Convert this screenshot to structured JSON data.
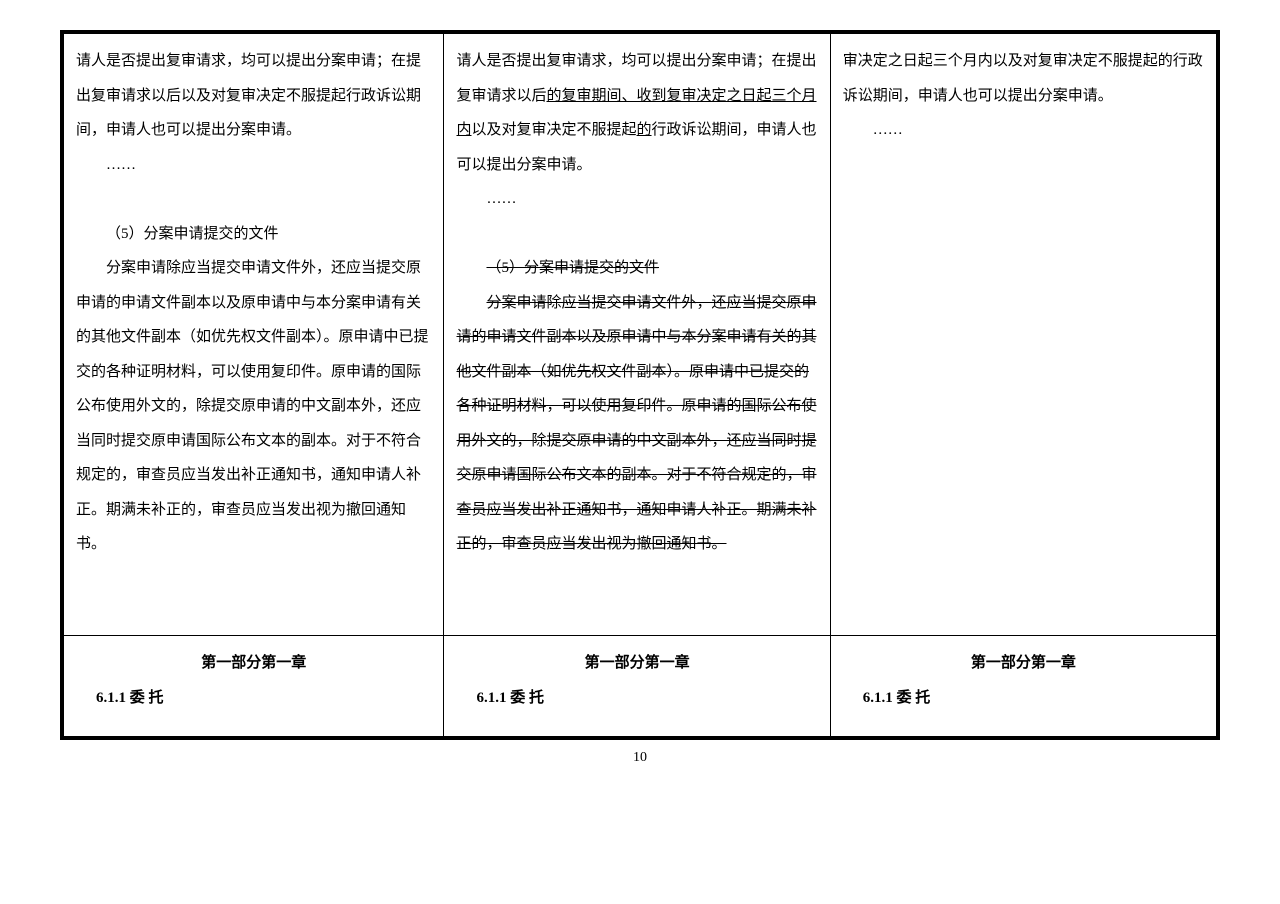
{
  "pageNumber": "10",
  "columns": {
    "left": {
      "body": {
        "p1": "请人是否提出复审请求，均可以提出分案申请；在提出复审请求以后以及对复审决定不服提起行政诉讼期间，申请人也可以提出分案申请。",
        "ellipsis1": "……",
        "p2_title": "（5）分案申请提交的文件",
        "p3": "分案申请除应当提交申请文件外，还应当提交原申请的申请文件副本以及原申请中与本分案申请有关的其他文件副本（如优先权文件副本）。原申请中已提交的各种证明材料，可以使用复印件。原申请的国际公布使用外文的，除提交原申请的中文副本外，还应当同时提交原申请国际公布文本的副本。对于不符合规定的，审查员应当发出补正通知书，通知申请人补正。期满未补正的，审查员应当发出视为撤回通知书。"
      },
      "header": {
        "line1": "第一部分第一章",
        "line2": "6.1.1 委 托"
      }
    },
    "middle": {
      "body": {
        "p1_start": "请人是否提出复审请求，均可以提出分案申请；在提出复审请求以后",
        "p1_underline": "的复审期间、收到复审决定之日起三个月内",
        "p1_mid": "以及对复审决定不服提起",
        "p1_underline2": "的",
        "p1_end": "行政诉讼期间，申请人也可以提出分案申请。",
        "ellipsis1": "……",
        "p2_title": "（5）分案申请提交的文件",
        "p3": "分案申请除应当提交申请文件外，还应当提交原申请的申请文件副本以及原申请中与本分案申请有关的其他文件副本（如优先权文件副本）。原申请中已提交的各种证明材料，可以使用复印件。原申请的国际公布使用外文的，除提交原申请的中文副本外，还应当同时提交原申请国际公布文本的副本。对于不符合规定的，审查员应当发出补正通知书，通知申请人补正。期满未补正的，审查员应当发出视为撤回通知书。"
      },
      "header": {
        "line1": "第一部分第一章",
        "line2": "6.1.1 委 托"
      }
    },
    "right": {
      "body": {
        "p1": "审决定之日起三个月内以及对复审决定不服提起的行政诉讼期间，申请人也可以提出分案申请。",
        "ellipsis1": "……"
      },
      "header": {
        "line1": "第一部分第一章",
        "line2": "6.1.1 委 托"
      }
    }
  }
}
